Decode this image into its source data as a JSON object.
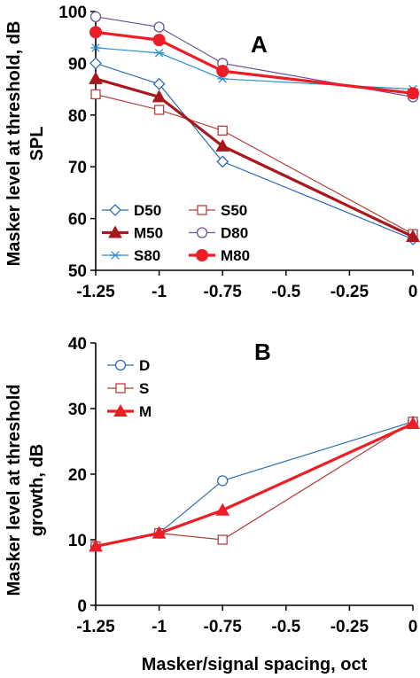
{
  "chart_data": [
    {
      "type": "line",
      "panel_label": "A",
      "ylabel_lines": [
        "Masker level at threshold, dB",
        "SPL"
      ],
      "xlabel": "",
      "x": [
        -1.25,
        -1,
        -0.75,
        0
      ],
      "xlim": [
        -1.25,
        0
      ],
      "xticks": [
        -1.25,
        -1,
        -0.75,
        -0.5,
        -0.25,
        0
      ],
      "xtick_labels": [
        "-1.25",
        "-1",
        "-0.75",
        "-0.5",
        "-0.25",
        "0"
      ],
      "ylim": [
        50,
        100
      ],
      "yticks": [
        50,
        60,
        70,
        80,
        90,
        100
      ],
      "ytick_labels": [
        "50",
        "60",
        "70",
        "80",
        "90",
        "100"
      ],
      "legend_placement": "bottom-left",
      "series": [
        {
          "name": "D50",
          "values": [
            90,
            86,
            71,
            56
          ],
          "color": "#2e6db5",
          "marker": "diamond-open",
          "width": 1.2
        },
        {
          "name": "S50",
          "values": [
            84,
            81,
            77,
            57
          ],
          "color": "#b5403f",
          "marker": "square-open",
          "width": 1.2
        },
        {
          "name": "M50",
          "values": [
            87,
            83.5,
            74,
            56.5
          ],
          "color": "#a8181c",
          "marker": "triangle-filled",
          "width": 3.2
        },
        {
          "name": "D80",
          "values": [
            99,
            97,
            90,
            83.5
          ],
          "color": "#6d5598",
          "marker": "circle-open",
          "width": 1.2
        },
        {
          "name": "S80",
          "values": [
            93,
            92,
            87,
            85
          ],
          "color": "#2b8fd6",
          "marker": "asterisk",
          "width": 1.2
        },
        {
          "name": "M80",
          "values": [
            96,
            94.5,
            88.5,
            84.2
          ],
          "color": "#ee1c24",
          "marker": "circle-filled",
          "width": 3.2
        }
      ]
    },
    {
      "type": "line",
      "panel_label": "B",
      "ylabel_lines": [
        "Masker level at threshold",
        "growth, dB"
      ],
      "xlabel": "Masker/signal spacing, oct",
      "x": [
        -1.25,
        -1,
        -0.75,
        0
      ],
      "xlim": [
        -1.25,
        0
      ],
      "xticks": [
        -1.25,
        -1,
        -0.75,
        -0.5,
        -0.25,
        0
      ],
      "xtick_labels": [
        "-1.25",
        "-1",
        "-0.75",
        "-0.5",
        "-0.25",
        "0"
      ],
      "ylim": [
        0,
        40
      ],
      "yticks": [
        0,
        10,
        20,
        30,
        40
      ],
      "ytick_labels": [
        "0",
        "10",
        "20",
        "30",
        "40"
      ],
      "legend_placement": "top-left",
      "series": [
        {
          "name": "D",
          "values": [
            9,
            11,
            19,
            28
          ],
          "color": "#2e6db5",
          "marker": "circle-open",
          "width": 1.2
        },
        {
          "name": "S",
          "values": [
            9,
            11,
            10,
            28
          ],
          "color": "#b5403f",
          "marker": "square-open",
          "width": 1.2
        },
        {
          "name": "M",
          "values": [
            9,
            11,
            14.5,
            27.7
          ],
          "color": "#ee1c24",
          "marker": "triangle-filled",
          "width": 3.2
        }
      ]
    }
  ]
}
